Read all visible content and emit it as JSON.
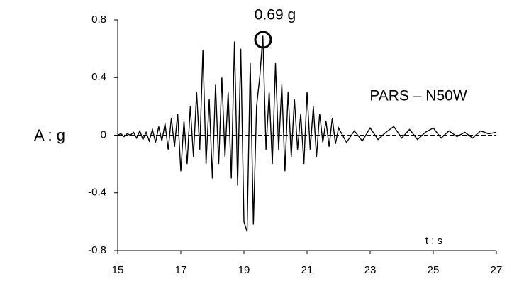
{
  "chart_data": {
    "type": "line",
    "y_label": "A : g",
    "x_label": "t : s",
    "annotations": [
      "0.69 g",
      "PARS – N50W"
    ],
    "xlim": [
      15,
      27
    ],
    "xticks": [
      15,
      17,
      19,
      21,
      23,
      25,
      27
    ],
    "ylim": [
      -0.8,
      0.8
    ],
    "yticks": [
      -0.8,
      -0.4,
      0,
      0.4,
      0.8
    ],
    "grid": false,
    "x": [
      15.0,
      15.1,
      15.2,
      15.3,
      15.4,
      15.5,
      15.6,
      15.7,
      15.8,
      15.9,
      16.0,
      16.1,
      16.2,
      16.3,
      16.4,
      16.5,
      16.6,
      16.7,
      16.8,
      16.9,
      17.0,
      17.1,
      17.2,
      17.3,
      17.4,
      17.5,
      17.6,
      17.7,
      17.8,
      17.9,
      18.0,
      18.1,
      18.2,
      18.3,
      18.4,
      18.5,
      18.6,
      18.7,
      18.8,
      18.9,
      19.0,
      19.1,
      19.2,
      19.3,
      19.4,
      19.5,
      19.6,
      19.7,
      19.8,
      19.9,
      20.0,
      20.1,
      20.2,
      20.3,
      20.4,
      20.5,
      20.6,
      20.7,
      20.8,
      20.9,
      21.0,
      21.1,
      21.2,
      21.3,
      21.4,
      21.5,
      21.6,
      21.7,
      21.8,
      21.9,
      22.0,
      22.25,
      22.5,
      22.75,
      23.0,
      23.25,
      23.5,
      23.75,
      24.0,
      24.25,
      24.5,
      24.75,
      25.0,
      25.25,
      25.5,
      25.75,
      26.0,
      26.25,
      26.5,
      26.75,
      27.0
    ],
    "series": [
      {
        "name": "PARS – N50W",
        "color": "#000000",
        "values": [
          0,
          0.01,
          -0.01,
          0.01,
          0,
          0.02,
          -0.02,
          0.03,
          -0.03,
          0.02,
          -0.04,
          0.04,
          -0.05,
          0.06,
          -0.04,
          0.08,
          -0.1,
          0.12,
          -0.08,
          0.15,
          -0.25,
          0.1,
          -0.2,
          0.2,
          -0.15,
          0.3,
          -0.1,
          0.59,
          -0.2,
          0.25,
          -0.3,
          0.35,
          -0.2,
          0.4,
          -0.15,
          0.3,
          -0.3,
          0.65,
          -0.35,
          0.6,
          -0.6,
          -0.67,
          0.5,
          -0.62,
          0.2,
          0.4,
          0.69,
          -0.1,
          0.3,
          -0.2,
          0.5,
          -0.1,
          0.35,
          -0.25,
          0.3,
          -0.15,
          0.25,
          -0.1,
          0.15,
          -0.2,
          0.3,
          -0.1,
          0.2,
          -0.15,
          0.15,
          -0.05,
          0.1,
          -0.08,
          0.12,
          -0.06,
          0.05,
          -0.05,
          0.03,
          -0.04,
          0.05,
          -0.03,
          0.02,
          0.06,
          -0.02,
          0.04,
          -0.03,
          0.02,
          0.05,
          -0.02,
          0.03,
          -0.01,
          0.02,
          -0.02,
          0.03,
          0.01,
          0.02
        ]
      }
    ]
  }
}
